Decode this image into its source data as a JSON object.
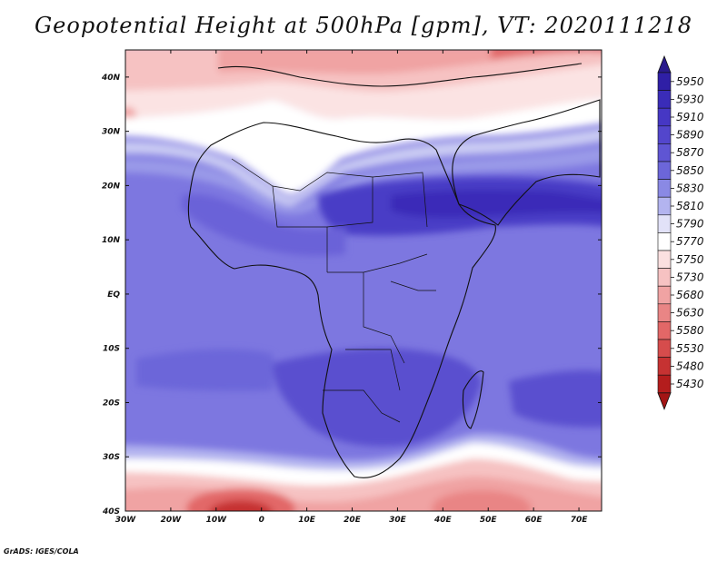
{
  "title": "Geopotential Height at 500hPa [gpm], VT: 2020111218",
  "credit": "GrADS: IGES/COLA",
  "map": {
    "lon_range": [
      -30,
      75
    ],
    "lat_range": [
      -40,
      45
    ],
    "lon_ticks": [
      "30W",
      "20W",
      "10W",
      "0",
      "10E",
      "20E",
      "30E",
      "40E",
      "50E",
      "60E",
      "70E"
    ],
    "lat_ticks": [
      "40N",
      "30N",
      "20N",
      "10N",
      "EQ",
      "10S",
      "20S",
      "30S",
      "40S"
    ]
  },
  "colorbar": {
    "levels": [
      "5950",
      "5930",
      "5910",
      "5890",
      "5870",
      "5850",
      "5830",
      "5810",
      "5790",
      "5770",
      "5750",
      "5730",
      "5680",
      "5630",
      "5580",
      "5530",
      "5480",
      "5430"
    ],
    "colors": {
      "top_arrow": "#2a1a8c",
      "bins": [
        "#2f1fa6",
        "#3a2cb8",
        "#4637c4",
        "#5346cc",
        "#5f55d3",
        "#6c66d9",
        "#8a89e4",
        "#b3b4ef",
        "#e2e2f8",
        "#ffffff",
        "#fbe0e0",
        "#f6c2c2",
        "#f0a3a3",
        "#e98585",
        "#e26767",
        "#d64c4c",
        "#c63232",
        "#b41d1d"
      ],
      "bottom_arrow": "#a31515"
    }
  }
}
